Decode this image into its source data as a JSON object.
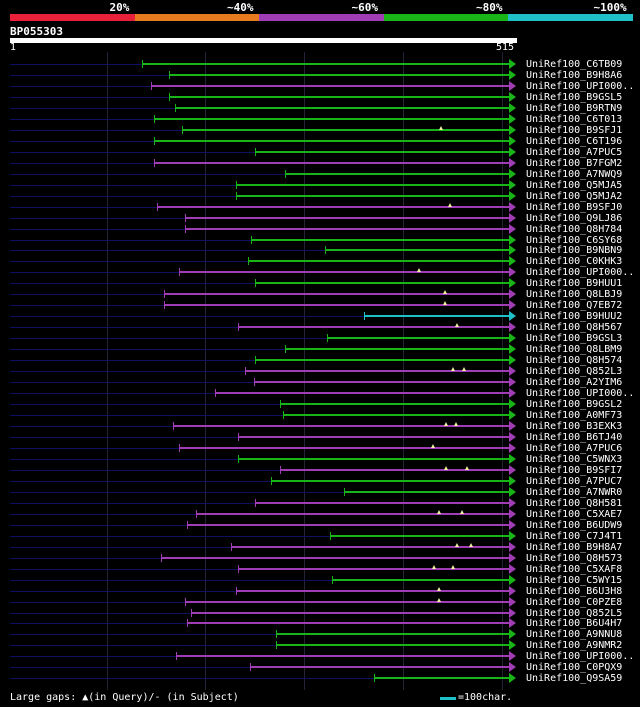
{
  "colors": {
    "red": "#e8203a",
    "orange": "#e87a20",
    "purple": "#a03cb4",
    "green": "#18b418",
    "cyan": "#20c0c8",
    "query": "#101060"
  },
  "identity_scale": [
    {
      "label": "20%",
      "color": "#e8203a"
    },
    {
      "label": "~40%",
      "color": "#e87a20"
    },
    {
      "label": "~60%",
      "color": "#a03cb4"
    },
    {
      "label": "~80%",
      "color": "#18b418"
    },
    {
      "label": "~100%",
      "color": "#20c0c8"
    }
  ],
  "query": {
    "id": "BP055303",
    "start_label": "1",
    "end_label": "515",
    "length": 515
  },
  "hits": [
    {
      "name": "UniRef100_C6TB09",
      "start": 135,
      "color": "green",
      "gaps": []
    },
    {
      "name": "UniRef100_B9H8A6",
      "start": 162,
      "color": "green",
      "gaps": []
    },
    {
      "name": "UniRef100_UPI000..",
      "start": 144,
      "color": "purple",
      "gaps": []
    },
    {
      "name": "UniRef100_B9GSL5",
      "start": 162,
      "color": "green",
      "gaps": []
    },
    {
      "name": "UniRef100_B9RTN9",
      "start": 168,
      "color": "green",
      "gaps": []
    },
    {
      "name": "UniRef100_C6T013",
      "start": 147,
      "color": "green",
      "gaps": []
    },
    {
      "name": "UniRef100_B9SFJ1",
      "start": 175,
      "color": "green",
      "gaps": [
        440
      ]
    },
    {
      "name": "UniRef100_C6T196",
      "start": 147,
      "color": "green",
      "gaps": []
    },
    {
      "name": "UniRef100_A7PUC5",
      "start": 250,
      "color": "green",
      "gaps": []
    },
    {
      "name": "UniRef100_B7FGM2",
      "start": 147,
      "color": "purple",
      "gaps": []
    },
    {
      "name": "UniRef100_A7NWQ9",
      "start": 280,
      "color": "green",
      "gaps": []
    },
    {
      "name": "UniRef100_Q5MJA5",
      "start": 230,
      "color": "green",
      "gaps": []
    },
    {
      "name": "UniRef100_Q5MJA2",
      "start": 230,
      "color": "green",
      "gaps": []
    },
    {
      "name": "UniRef100_B9SFJ0",
      "start": 150,
      "color": "purple",
      "gaps": [
        449
      ]
    },
    {
      "name": "UniRef100_Q9LJ86",
      "start": 178,
      "color": "purple",
      "gaps": []
    },
    {
      "name": "UniRef100_Q8H784",
      "start": 178,
      "color": "purple",
      "gaps": []
    },
    {
      "name": "UniRef100_C6SY68",
      "start": 246,
      "color": "green",
      "gaps": []
    },
    {
      "name": "UniRef100_B9NBN9",
      "start": 321,
      "color": "green",
      "gaps": []
    },
    {
      "name": "UniRef100_C0KHK3",
      "start": 243,
      "color": "green",
      "gaps": []
    },
    {
      "name": "UniRef100_UPI000..",
      "start": 172,
      "color": "purple",
      "gaps": [
        417
      ]
    },
    {
      "name": "UniRef100_B9HUU1",
      "start": 250,
      "color": "green",
      "gaps": []
    },
    {
      "name": "UniRef100_Q8LBJ9",
      "start": 157,
      "color": "purple",
      "gaps": [
        444
      ]
    },
    {
      "name": "UniRef100_Q7EB72",
      "start": 157,
      "color": "purple",
      "gaps": [
        444
      ]
    },
    {
      "name": "UniRef100_B9HUU2",
      "start": 361,
      "color": "cyan",
      "gaps": []
    },
    {
      "name": "UniRef100_Q8H567",
      "start": 233,
      "color": "purple",
      "gaps": [
        456
      ]
    },
    {
      "name": "UniRef100_B9GSL3",
      "start": 323,
      "color": "green",
      "gaps": []
    },
    {
      "name": "UniRef100_Q8LBM9",
      "start": 280,
      "color": "green",
      "gaps": []
    },
    {
      "name": "UniRef100_Q8H574",
      "start": 250,
      "color": "green",
      "gaps": []
    },
    {
      "name": "UniRef100_Q852L3",
      "start": 240,
      "color": "purple",
      "gaps": [
        452,
        463
      ]
    },
    {
      "name": "UniRef100_A2YIM6",
      "start": 249,
      "color": "purple",
      "gaps": []
    },
    {
      "name": "UniRef100_UPI000..",
      "start": 209,
      "color": "purple",
      "gaps": []
    },
    {
      "name": "UniRef100_B9GSL2",
      "start": 275,
      "color": "green",
      "gaps": []
    },
    {
      "name": "UniRef100_A0MF73",
      "start": 278,
      "color": "green",
      "gaps": []
    },
    {
      "name": "UniRef100_B3EXK3",
      "start": 166,
      "color": "purple",
      "gaps": [
        445,
        455
      ]
    },
    {
      "name": "UniRef100_B6TJ40",
      "start": 233,
      "color": "purple",
      "gaps": []
    },
    {
      "name": "UniRef100_A7PUC6",
      "start": 172,
      "color": "purple",
      "gaps": [
        431
      ]
    },
    {
      "name": "UniRef100_C5WNX3",
      "start": 233,
      "color": "green",
      "gaps": []
    },
    {
      "name": "UniRef100_B9SFI7",
      "start": 275,
      "color": "purple",
      "gaps": [
        445,
        466
      ]
    },
    {
      "name": "UniRef100_A7PUC7",
      "start": 266,
      "color": "green",
      "gaps": []
    },
    {
      "name": "UniRef100_A7NWR0",
      "start": 341,
      "color": "green",
      "gaps": []
    },
    {
      "name": "UniRef100_Q8H581",
      "start": 250,
      "color": "purple",
      "gaps": []
    },
    {
      "name": "UniRef100_C5XAE7",
      "start": 190,
      "color": "purple",
      "gaps": [
        437,
        461
      ]
    },
    {
      "name": "UniRef100_B6UDW9",
      "start": 180,
      "color": "purple",
      "gaps": []
    },
    {
      "name": "UniRef100_C7J4T1",
      "start": 326,
      "color": "green",
      "gaps": []
    },
    {
      "name": "UniRef100_B9H8A7",
      "start": 225,
      "color": "purple",
      "gaps": [
        456,
        470
      ]
    },
    {
      "name": "UniRef100_Q8H573",
      "start": 154,
      "color": "purple",
      "gaps": []
    },
    {
      "name": "UniRef100_C5XAF8",
      "start": 233,
      "color": "purple",
      "gaps": [
        432,
        452
      ]
    },
    {
      "name": "UniRef100_C5WY15",
      "start": 328,
      "color": "green",
      "gaps": []
    },
    {
      "name": "UniRef100_B6U3H8",
      "start": 230,
      "color": "purple",
      "gaps": [
        437
      ]
    },
    {
      "name": "UniRef100_C0PZE8",
      "start": 178,
      "color": "purple",
      "gaps": [
        437
      ]
    },
    {
      "name": "UniRef100_Q852L5",
      "start": 185,
      "color": "purple",
      "gaps": []
    },
    {
      "name": "UniRef100_B6U4H7",
      "start": 180,
      "color": "purple",
      "gaps": []
    },
    {
      "name": "UniRef100_A9NNU8",
      "start": 271,
      "color": "green",
      "gaps": []
    },
    {
      "name": "UniRef100_A9NMR2",
      "start": 271,
      "color": "green",
      "gaps": []
    },
    {
      "name": "UniRef100_UPI000..",
      "start": 169,
      "color": "purple",
      "gaps": []
    },
    {
      "name": "UniRef100_C0PQX9",
      "start": 245,
      "color": "purple",
      "gaps": []
    },
    {
      "name": "UniRef100_Q9SA59",
      "start": 371,
      "color": "green",
      "gaps": []
    }
  ],
  "footer": {
    "gap_text": "Large gaps: ▲(in Query)/- (in Subject)",
    "scale_text": "=100char."
  }
}
